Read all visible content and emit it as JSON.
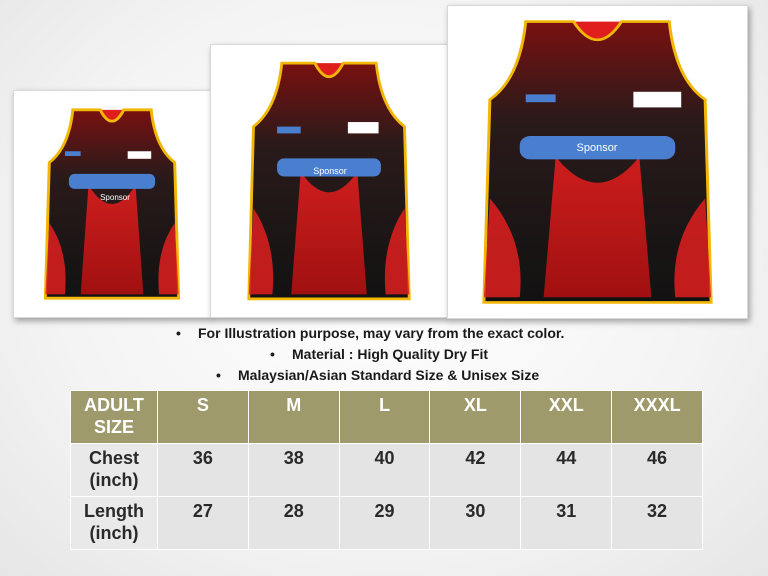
{
  "images": [
    {
      "id": "small",
      "sponsor_label": "Sponsor"
    },
    {
      "id": "medium",
      "sponsor_label": "Sponsor"
    },
    {
      "id": "large",
      "sponsor_label": "Sponsor"
    }
  ],
  "notes": [
    "For Illustration purpose, may vary from the exact color.",
    "Material : High Quality Dry Fit",
    "Malaysian/Asian Standard Size & Unisex Size"
  ],
  "bullet": "•",
  "table": {
    "header": {
      "label_line1": "ADULT",
      "label_line2": "SIZE",
      "sizes": [
        "S",
        "M",
        "L",
        "XL",
        "XXL",
        "XXXL"
      ]
    },
    "rows": [
      {
        "label_line1": "Chest",
        "label_line2": "(inch)",
        "values": [
          "36",
          "38",
          "40",
          "42",
          "44",
          "46"
        ]
      },
      {
        "label_line1": "Length",
        "label_line2": "(inch)",
        "values": [
          "27",
          "28",
          "29",
          "30",
          "31",
          "32"
        ]
      }
    ]
  },
  "colors": {
    "header_bg": "#9e9a6c",
    "row_bg": "#e4e4e4",
    "jersey_red": "#e01e1e",
    "jersey_dark": "#1a1a1a",
    "trim_yellow": "#f2b705",
    "sponsor_blue": "#4a7fd0"
  }
}
